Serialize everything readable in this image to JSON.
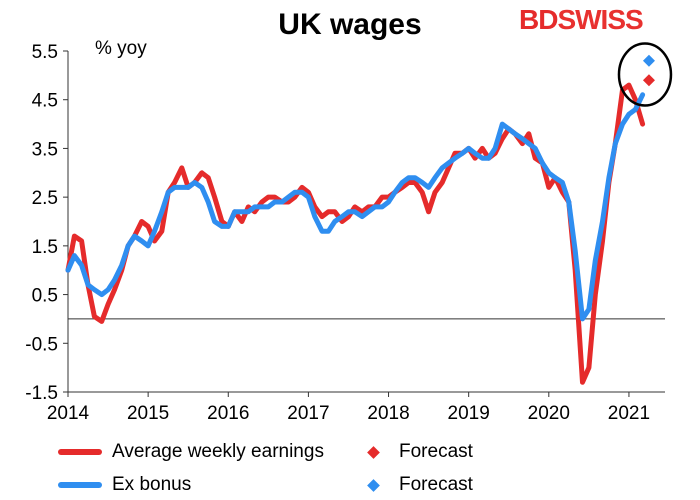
{
  "header": {
    "title": "UK wages",
    "logo_text": "BDSWISS",
    "unit_label": "% yoy"
  },
  "colors": {
    "awe": "#e52b2b",
    "exbonus": "#2f8ef0",
    "axis": "#333333",
    "text": "#000000"
  },
  "chart_data": {
    "type": "line",
    "title": "UK wages",
    "ylabel": "% yoy",
    "xlabel": "",
    "ylim": [
      -1.5,
      5.5
    ],
    "xlim": [
      2014.0,
      2021.45
    ],
    "yticks": [
      5.5,
      4.5,
      3.5,
      2.5,
      1.5,
      0.5,
      -0.5,
      -1.5
    ],
    "ytick_labels": [
      "5.5",
      "4.5",
      "3.5",
      "2.5",
      "1.5",
      "0.5",
      "-0.5",
      "-1.5"
    ],
    "xticks": [
      2014,
      2015,
      2016,
      2017,
      2018,
      2019,
      2020,
      2021
    ],
    "xtick_labels": [
      "2014",
      "2015",
      "2016",
      "2017",
      "2018",
      "2019",
      "2020",
      "2021"
    ],
    "zero_line": true,
    "grid": false,
    "legend_position": "bottom",
    "series": [
      {
        "name": "Average weekly earnings",
        "color": "#e52b2b",
        "points": [
          [
            2014.0,
            1.0
          ],
          [
            2014.08,
            1.7
          ],
          [
            2014.17,
            1.6
          ],
          [
            2014.25,
            0.7
          ],
          [
            2014.33,
            0.05
          ],
          [
            2014.42,
            -0.05
          ],
          [
            2014.5,
            0.3
          ],
          [
            2014.58,
            0.6
          ],
          [
            2014.67,
            1.0
          ],
          [
            2014.75,
            1.5
          ],
          [
            2014.83,
            1.7
          ],
          [
            2014.92,
            2.0
          ],
          [
            2015.0,
            1.9
          ],
          [
            2015.08,
            1.6
          ],
          [
            2015.17,
            1.8
          ],
          [
            2015.25,
            2.6
          ],
          [
            2015.33,
            2.8
          ],
          [
            2015.42,
            3.1
          ],
          [
            2015.5,
            2.7
          ],
          [
            2015.58,
            2.8
          ],
          [
            2015.67,
            3.0
          ],
          [
            2015.75,
            2.9
          ],
          [
            2015.83,
            2.5
          ],
          [
            2015.92,
            2.0
          ],
          [
            2016.0,
            1.9
          ],
          [
            2016.08,
            2.2
          ],
          [
            2016.17,
            2.0
          ],
          [
            2016.25,
            2.3
          ],
          [
            2016.33,
            2.2
          ],
          [
            2016.42,
            2.4
          ],
          [
            2016.5,
            2.5
          ],
          [
            2016.58,
            2.5
          ],
          [
            2016.67,
            2.4
          ],
          [
            2016.75,
            2.4
          ],
          [
            2016.83,
            2.5
          ],
          [
            2016.92,
            2.7
          ],
          [
            2017.0,
            2.6
          ],
          [
            2017.08,
            2.3
          ],
          [
            2017.17,
            2.1
          ],
          [
            2017.25,
            2.2
          ],
          [
            2017.33,
            2.2
          ],
          [
            2017.42,
            2.0
          ],
          [
            2017.5,
            2.1
          ],
          [
            2017.58,
            2.3
          ],
          [
            2017.67,
            2.2
          ],
          [
            2017.75,
            2.3
          ],
          [
            2017.83,
            2.3
          ],
          [
            2017.92,
            2.5
          ],
          [
            2018.0,
            2.5
          ],
          [
            2018.08,
            2.6
          ],
          [
            2018.17,
            2.7
          ],
          [
            2018.25,
            2.8
          ],
          [
            2018.33,
            2.8
          ],
          [
            2018.42,
            2.6
          ],
          [
            2018.5,
            2.2
          ],
          [
            2018.58,
            2.6
          ],
          [
            2018.67,
            2.8
          ],
          [
            2018.75,
            3.1
          ],
          [
            2018.83,
            3.4
          ],
          [
            2018.92,
            3.4
          ],
          [
            2019.0,
            3.5
          ],
          [
            2019.08,
            3.3
          ],
          [
            2019.17,
            3.5
          ],
          [
            2019.25,
            3.3
          ],
          [
            2019.33,
            3.4
          ],
          [
            2019.42,
            3.7
          ],
          [
            2019.5,
            3.9
          ],
          [
            2019.58,
            3.8
          ],
          [
            2019.67,
            3.6
          ],
          [
            2019.75,
            3.8
          ],
          [
            2019.83,
            3.3
          ],
          [
            2019.92,
            3.2
          ],
          [
            2020.0,
            2.7
          ],
          [
            2020.08,
            2.9
          ],
          [
            2020.17,
            2.6
          ],
          [
            2020.25,
            2.4
          ],
          [
            2020.33,
            1.0
          ],
          [
            2020.42,
            -1.3
          ],
          [
            2020.5,
            -1.0
          ],
          [
            2020.58,
            0.5
          ],
          [
            2020.67,
            1.6
          ],
          [
            2020.75,
            2.8
          ],
          [
            2020.83,
            3.6
          ],
          [
            2020.92,
            4.7
          ],
          [
            2021.0,
            4.8
          ],
          [
            2021.08,
            4.5
          ],
          [
            2021.17,
            4.0
          ]
        ]
      },
      {
        "name": "Ex bonus",
        "color": "#2f8ef0",
        "points": [
          [
            2014.0,
            1.0
          ],
          [
            2014.08,
            1.3
          ],
          [
            2014.17,
            1.1
          ],
          [
            2014.25,
            0.7
          ],
          [
            2014.33,
            0.6
          ],
          [
            2014.42,
            0.5
          ],
          [
            2014.5,
            0.6
          ],
          [
            2014.58,
            0.8
          ],
          [
            2014.67,
            1.1
          ],
          [
            2014.75,
            1.5
          ],
          [
            2014.83,
            1.7
          ],
          [
            2014.92,
            1.6
          ],
          [
            2015.0,
            1.5
          ],
          [
            2015.08,
            1.8
          ],
          [
            2015.17,
            2.2
          ],
          [
            2015.25,
            2.6
          ],
          [
            2015.33,
            2.7
          ],
          [
            2015.42,
            2.7
          ],
          [
            2015.5,
            2.7
          ],
          [
            2015.58,
            2.8
          ],
          [
            2015.67,
            2.7
          ],
          [
            2015.75,
            2.4
          ],
          [
            2015.83,
            2.0
          ],
          [
            2015.92,
            1.9
          ],
          [
            2016.0,
            1.9
          ],
          [
            2016.08,
            2.2
          ],
          [
            2016.17,
            2.2
          ],
          [
            2016.25,
            2.2
          ],
          [
            2016.33,
            2.3
          ],
          [
            2016.42,
            2.3
          ],
          [
            2016.5,
            2.3
          ],
          [
            2016.58,
            2.4
          ],
          [
            2016.67,
            2.4
          ],
          [
            2016.75,
            2.5
          ],
          [
            2016.83,
            2.6
          ],
          [
            2016.92,
            2.6
          ],
          [
            2017.0,
            2.5
          ],
          [
            2017.08,
            2.1
          ],
          [
            2017.17,
            1.8
          ],
          [
            2017.25,
            1.8
          ],
          [
            2017.33,
            2.0
          ],
          [
            2017.42,
            2.1
          ],
          [
            2017.5,
            2.2
          ],
          [
            2017.58,
            2.2
          ],
          [
            2017.67,
            2.1
          ],
          [
            2017.75,
            2.2
          ],
          [
            2017.83,
            2.3
          ],
          [
            2017.92,
            2.3
          ],
          [
            2018.0,
            2.4
          ],
          [
            2018.08,
            2.6
          ],
          [
            2018.17,
            2.8
          ],
          [
            2018.25,
            2.9
          ],
          [
            2018.33,
            2.9
          ],
          [
            2018.42,
            2.8
          ],
          [
            2018.5,
            2.7
          ],
          [
            2018.58,
            2.9
          ],
          [
            2018.67,
            3.1
          ],
          [
            2018.75,
            3.2
          ],
          [
            2018.83,
            3.3
          ],
          [
            2018.92,
            3.4
          ],
          [
            2019.0,
            3.5
          ],
          [
            2019.08,
            3.4
          ],
          [
            2019.17,
            3.3
          ],
          [
            2019.25,
            3.3
          ],
          [
            2019.33,
            3.5
          ],
          [
            2019.42,
            4.0
          ],
          [
            2019.5,
            3.9
          ],
          [
            2019.58,
            3.8
          ],
          [
            2019.67,
            3.7
          ],
          [
            2019.75,
            3.6
          ],
          [
            2019.83,
            3.5
          ],
          [
            2019.92,
            3.2
          ],
          [
            2020.0,
            3.0
          ],
          [
            2020.08,
            2.9
          ],
          [
            2020.17,
            2.8
          ],
          [
            2020.25,
            2.4
          ],
          [
            2020.33,
            1.4
          ],
          [
            2020.42,
            0.0
          ],
          [
            2020.5,
            0.2
          ],
          [
            2020.58,
            1.2
          ],
          [
            2020.67,
            2.0
          ],
          [
            2020.75,
            2.9
          ],
          [
            2020.83,
            3.6
          ],
          [
            2020.92,
            4.0
          ],
          [
            2021.0,
            4.2
          ],
          [
            2021.08,
            4.3
          ],
          [
            2021.17,
            4.6
          ]
        ]
      }
    ],
    "forecasts": [
      {
        "name": "Forecast",
        "series": "Average weekly earnings",
        "x": 2021.25,
        "y": 4.9,
        "color": "#e52b2b"
      },
      {
        "name": "Forecast",
        "series": "Ex bonus",
        "x": 2021.25,
        "y": 5.3,
        "color": "#2f8ef0"
      }
    ],
    "annotation": {
      "type": "ellipse",
      "around": "forecasts"
    }
  },
  "legend": {
    "awe": "Average weekly earnings",
    "exbonus": "Ex bonus",
    "forecast1": "Forecast",
    "forecast2": "Forecast"
  }
}
